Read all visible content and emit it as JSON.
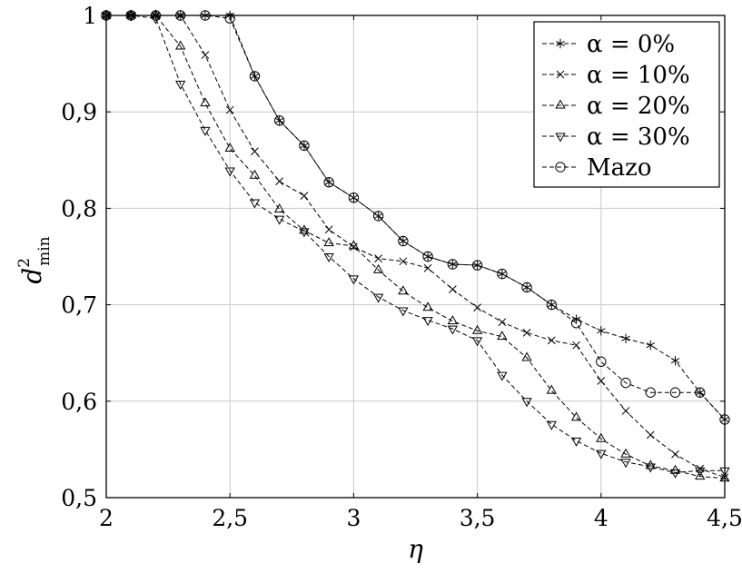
{
  "chart_data": {
    "type": "line",
    "xlabel": "η",
    "ylabel_main": "d",
    "ylabel_sup": "2",
    "ylabel_sub": "min",
    "xlim": [
      2,
      4.5
    ],
    "ylim": [
      0.5,
      1
    ],
    "xticks": [
      2,
      2.5,
      3,
      3.5,
      4,
      4.5
    ],
    "xtick_labels": [
      "2",
      "2,5",
      "3",
      "3,5",
      "4",
      "4,5"
    ],
    "yticks": [
      0.5,
      0.6,
      0.7,
      0.8,
      0.9,
      1
    ],
    "ytick_labels": [
      "0,5",
      "0,6",
      "0,7",
      "0,8",
      "0,9",
      "1"
    ],
    "grid": true,
    "legend_position": "top-right",
    "x": [
      2.0,
      2.1,
      2.2,
      2.3,
      2.4,
      2.5,
      2.6,
      2.7,
      2.8,
      2.9,
      3.0,
      3.1,
      3.2,
      3.3,
      3.4,
      3.5,
      3.6,
      3.7,
      3.8,
      3.9,
      4.0,
      4.1,
      4.2,
      4.3,
      4.4,
      4.5
    ],
    "series": [
      {
        "name": "α = 0%",
        "marker": "asterisk",
        "values": [
          1,
          1,
          1,
          1,
          1,
          1,
          0.937,
          0.891,
          0.865,
          0.827,
          0.811,
          0.792,
          0.766,
          0.75,
          0.742,
          0.741,
          0.732,
          0.718,
          0.7,
          0.685,
          0.673,
          0.665,
          0.658,
          0.642,
          0.609,
          0.581
        ]
      },
      {
        "name": "α = 10%",
        "marker": "cross",
        "values": [
          1,
          1,
          1,
          1,
          0.959,
          0.902,
          0.859,
          0.828,
          0.813,
          0.778,
          0.76,
          0.748,
          0.745,
          0.738,
          0.716,
          0.697,
          0.682,
          0.671,
          0.663,
          0.658,
          0.621,
          0.59,
          0.565,
          0.545,
          0.53,
          0.521
        ]
      },
      {
        "name": "α = 20%",
        "marker": "triangle-up",
        "values": [
          1,
          1,
          1,
          0.968,
          0.909,
          0.862,
          0.834,
          0.799,
          0.777,
          0.764,
          0.761,
          0.736,
          0.714,
          0.697,
          0.683,
          0.673,
          0.667,
          0.645,
          0.611,
          0.583,
          0.561,
          0.545,
          0.533,
          0.528,
          0.522,
          0.52
        ]
      },
      {
        "name": "α = 30%",
        "marker": "triangle-down",
        "values": [
          1,
          1,
          0.997,
          0.929,
          0.881,
          0.839,
          0.806,
          0.789,
          0.776,
          0.75,
          0.727,
          0.708,
          0.694,
          0.684,
          0.675,
          0.663,
          0.627,
          0.6,
          0.576,
          0.559,
          0.546,
          0.537,
          0.532,
          0.526,
          0.528,
          0.528
        ]
      },
      {
        "name": "Mazo",
        "marker": "circle",
        "values": [
          1,
          1,
          1,
          1,
          1,
          0.997,
          0.937,
          0.891,
          0.865,
          0.827,
          0.811,
          0.792,
          0.766,
          0.75,
          0.742,
          0.741,
          0.732,
          0.718,
          0.7,
          0.681,
          0.641,
          0.619,
          0.609,
          0.609,
          0.609,
          0.581
        ]
      }
    ]
  }
}
